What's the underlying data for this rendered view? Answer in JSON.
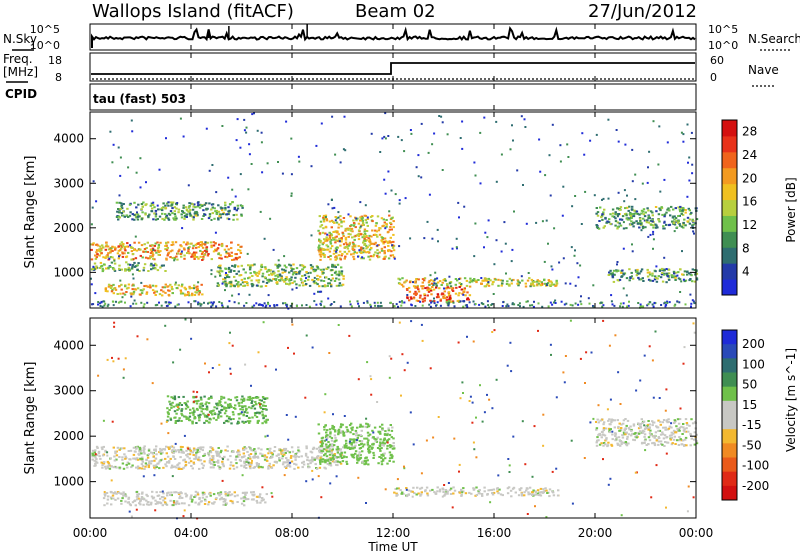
{
  "header": {
    "station": "Wallops Island (fitACF)",
    "beam": "Beam 02",
    "date": "27/Jun/2012"
  },
  "noise_panel": {
    "left_label": "N.Sky",
    "right_label": "N.Search",
    "left_ticks": [
      "10^5",
      "10^0"
    ],
    "right_ticks": [
      "10^5",
      "10^0"
    ]
  },
  "freq_panel": {
    "left_label_1": "Freq.",
    "left_label_2": "[MHz]",
    "right_label": "Nave",
    "left_ticks": [
      "18",
      "8"
    ],
    "right_ticks": [
      "60",
      "0"
    ],
    "cpid_label": "CPID"
  },
  "cpid_panel": {
    "text": "tau (fast) 503"
  },
  "x_axis": {
    "title": "Time UT",
    "ticks": [
      "00:00",
      "04:00",
      "08:00",
      "12:00",
      "16:00",
      "20:00",
      "00:00"
    ]
  },
  "colors": {
    "power": [
      "#1f2bd8",
      "#233aa8",
      "#2e6d70",
      "#3f8e52",
      "#6fc04a",
      "#b7cf3e",
      "#f0c020",
      "#f39a20",
      "#f0641c",
      "#e8321a",
      "#d41010"
    ],
    "velocity_pos": [
      "#1f2bd8",
      "#2a4ab8",
      "#2e6d70",
      "#3f8e52",
      "#6fc04a"
    ],
    "velocity_gray": "#c8c8c4",
    "velocity_neg": [
      "#f3b830",
      "#f08a22",
      "#ea5a1a",
      "#e02a16",
      "#d21010"
    ]
  },
  "chart_data": [
    {
      "type": "heatmap",
      "title": "Power",
      "xlabel": "Time UT",
      "ylabel": "Slant Range [km]",
      "x_ticks": [
        "00:00",
        "04:00",
        "08:00",
        "12:00",
        "16:00",
        "20:00",
        "00:00"
      ],
      "xlim_hours": [
        0,
        24
      ],
      "ylim": [
        200,
        4600
      ],
      "y_ticks": [
        1000,
        2000,
        3000,
        4000
      ],
      "colorbar": {
        "label": "Power [dB]",
        "ticks": [
          4,
          8,
          12,
          16,
          20,
          24,
          28
        ],
        "range": [
          0,
          30
        ]
      },
      "echo_bands": [
        {
          "t": [
            0,
            6
          ],
          "range_km": [
            1300,
            1700
          ],
          "power": 20
        },
        {
          "t": [
            0,
            3
          ],
          "range_km": [
            1050,
            1250
          ],
          "power": 10
        },
        {
          "t": [
            0.5,
            4.5
          ],
          "range_km": [
            500,
            750
          ],
          "power": 18
        },
        {
          "t": [
            1,
            6
          ],
          "range_km": [
            2200,
            2600
          ],
          "power": 10
        },
        {
          "t": [
            5,
            10
          ],
          "range_km": [
            700,
            1200
          ],
          "power": 12
        },
        {
          "t": [
            9,
            12
          ],
          "range_km": [
            1300,
            2300
          ],
          "power": 18
        },
        {
          "t": [
            12,
            18.5
          ],
          "range_km": [
            700,
            900
          ],
          "power": 16
        },
        {
          "t": [
            12.5,
            15
          ],
          "range_km": [
            350,
            700
          ],
          "power": 24
        },
        {
          "t": [
            20,
            24
          ],
          "range_km": [
            2000,
            2500
          ],
          "power": 10
        },
        {
          "t": [
            20.5,
            24
          ],
          "range_km": [
            800,
            1100
          ],
          "power": 10
        }
      ]
    },
    {
      "type": "heatmap",
      "title": "Velocity",
      "xlabel": "Time UT",
      "ylabel": "Slant Range [km]",
      "x_ticks": [
        "00:00",
        "04:00",
        "08:00",
        "12:00",
        "16:00",
        "20:00",
        "00:00"
      ],
      "xlim_hours": [
        0,
        24
      ],
      "ylim": [
        200,
        4600
      ],
      "y_ticks": [
        1000,
        2000,
        3000,
        4000
      ],
      "colorbar": {
        "label": "Velocity [m s^-1]",
        "ticks": [
          200,
          100,
          50,
          15,
          -15,
          -50,
          -100,
          -200
        ],
        "range": [
          -250,
          250
        ]
      },
      "echo_bands": [
        {
          "t": [
            0,
            10
          ],
          "range_km": [
            1300,
            1800
          ],
          "velocity": 0
        },
        {
          "t": [
            0.5,
            7
          ],
          "range_km": [
            500,
            800
          ],
          "velocity": 0
        },
        {
          "t": [
            3,
            7
          ],
          "range_km": [
            2300,
            2900
          ],
          "velocity": 40
        },
        {
          "t": [
            9,
            12
          ],
          "range_km": [
            1400,
            2300
          ],
          "velocity": 30
        },
        {
          "t": [
            12,
            18.5
          ],
          "range_km": [
            700,
            900
          ],
          "velocity": 0
        },
        {
          "t": [
            20,
            24
          ],
          "range_km": [
            1800,
            2400
          ],
          "velocity": 0
        }
      ]
    }
  ]
}
